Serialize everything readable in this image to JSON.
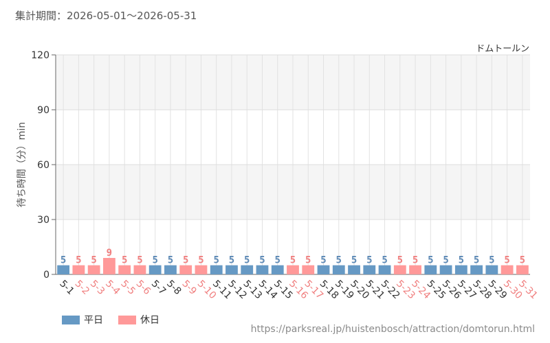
{
  "header": {
    "period": "集計期間：2026-05-01～2026-05-31",
    "attraction": "ドムトールン"
  },
  "legend": {
    "weekday": "平日",
    "holiday": "休日"
  },
  "colors": {
    "weekday": "#6699c4",
    "holiday": "#ff9999",
    "weekday_text": "#5b88b5",
    "holiday_text": "#f07f7f"
  },
  "source": "https://parksreal.jp/huistenbosch/attraction/domtorun.html",
  "chart_data": {
    "type": "bar",
    "title": "",
    "xlabel": "",
    "ylabel": "待ち時間（分）min",
    "ylim": [
      0,
      120
    ],
    "yticks": [
      0,
      30,
      60,
      90,
      120
    ],
    "grid": true,
    "categories": [
      "5-1",
      "5-2",
      "5-3",
      "5-4",
      "5-5",
      "5-6",
      "5-7",
      "5-8",
      "5-9",
      "5-10",
      "5-11",
      "5-12",
      "5-13",
      "5-14",
      "5-15",
      "5-16",
      "5-17",
      "5-18",
      "5-19",
      "5-20",
      "5-21",
      "5-22",
      "5-23",
      "5-24",
      "5-25",
      "5-26",
      "5-27",
      "5-28",
      "5-29",
      "5-30",
      "5-31"
    ],
    "values": [
      5,
      5,
      5,
      9,
      5,
      5,
      5,
      5,
      5,
      5,
      5,
      5,
      5,
      5,
      5,
      5,
      5,
      5,
      5,
      5,
      5,
      5,
      5,
      5,
      5,
      5,
      5,
      5,
      5,
      5,
      5
    ],
    "day_type": [
      "weekday",
      "holiday",
      "holiday",
      "holiday",
      "holiday",
      "holiday",
      "weekday",
      "weekday",
      "holiday",
      "holiday",
      "weekday",
      "weekday",
      "weekday",
      "weekday",
      "weekday",
      "holiday",
      "holiday",
      "weekday",
      "weekday",
      "weekday",
      "weekday",
      "weekday",
      "holiday",
      "holiday",
      "weekday",
      "weekday",
      "weekday",
      "weekday",
      "weekday",
      "holiday",
      "holiday"
    ]
  }
}
